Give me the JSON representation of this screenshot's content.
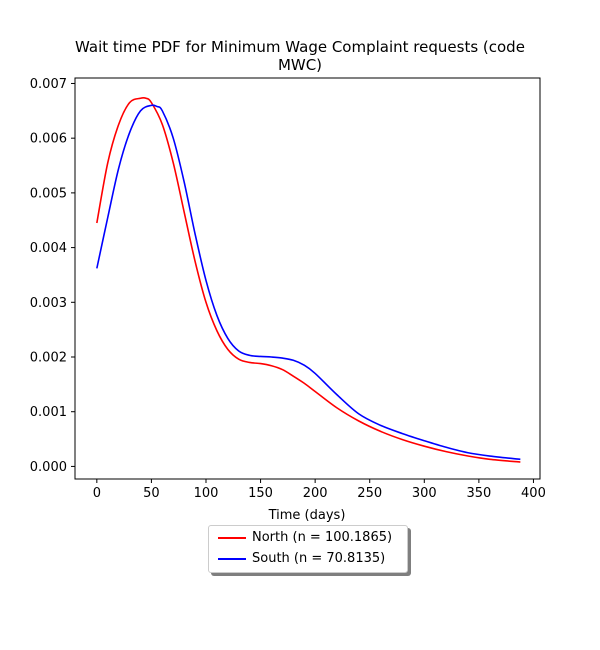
{
  "chart_data": {
    "type": "line",
    "title_lines": [
      "Wait time PDF for Minimum Wage Complaint  requests (code",
      "MWC)"
    ],
    "xlabel": "Time (days)",
    "ylabel": "",
    "xlim": [
      -20,
      406
    ],
    "ylim": [
      -0.00023,
      0.0071
    ],
    "xticks": [
      0,
      50,
      100,
      150,
      200,
      250,
      300,
      350,
      400
    ],
    "yticks": [
      0.0,
      0.001,
      0.002,
      0.003,
      0.004,
      0.005,
      0.006,
      0.007
    ],
    "ytick_labels": [
      "0.000",
      "0.001",
      "0.002",
      "0.003",
      "0.004",
      "0.005",
      "0.006",
      "0.007"
    ],
    "grid": false,
    "legend_position": "below-center",
    "series": [
      {
        "name": "North (n = 100.1865)",
        "color": "#ff0000",
        "x": [
          0,
          10,
          20,
          30,
          40,
          45,
          50,
          60,
          70,
          80,
          90,
          100,
          110,
          120,
          130,
          140,
          150,
          160,
          170,
          180,
          190,
          200,
          220,
          240,
          260,
          280,
          300,
          320,
          340,
          360,
          388
        ],
        "y": [
          0.00445,
          0.00555,
          0.00625,
          0.00665,
          0.00673,
          0.00673,
          0.00665,
          0.00625,
          0.00555,
          0.00465,
          0.00375,
          0.003,
          0.00248,
          0.00214,
          0.00196,
          0.0019,
          0.00188,
          0.00184,
          0.00177,
          0.00165,
          0.00152,
          0.00137,
          0.00107,
          0.00083,
          0.00064,
          0.00049,
          0.00037,
          0.00027,
          0.00019,
          0.00013,
          8e-05
        ]
      },
      {
        "name": "South (n = 70.8135)",
        "color": "#0000ff",
        "x": [
          0,
          10,
          20,
          30,
          40,
          50,
          55,
          60,
          70,
          80,
          90,
          100,
          110,
          120,
          130,
          140,
          150,
          160,
          170,
          180,
          190,
          200,
          220,
          240,
          260,
          280,
          300,
          320,
          340,
          360,
          388
        ],
        "y": [
          0.00362,
          0.00455,
          0.00545,
          0.0061,
          0.0065,
          0.0066,
          0.00658,
          0.0065,
          0.006,
          0.0052,
          0.00425,
          0.0034,
          0.00276,
          0.00234,
          0.00211,
          0.00203,
          0.00201,
          0.002,
          0.00198,
          0.00194,
          0.00185,
          0.0017,
          0.00131,
          0.00096,
          0.00075,
          0.0006,
          0.00047,
          0.00035,
          0.00025,
          0.00019,
          0.00013
        ]
      }
    ]
  }
}
